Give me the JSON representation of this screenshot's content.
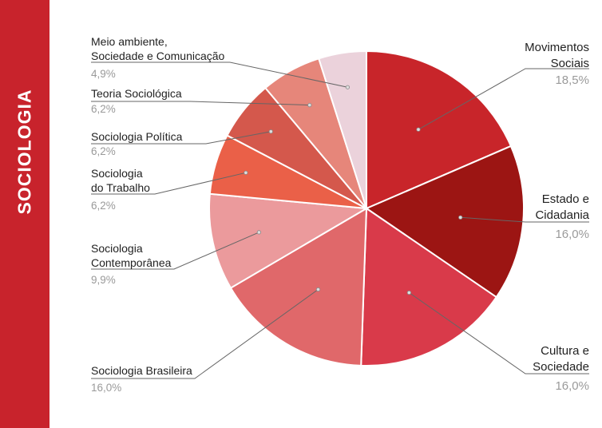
{
  "sidebar": {
    "title": "SOCIOLOGIA",
    "color": "#c8232c"
  },
  "chart_data": {
    "type": "pie",
    "slices": [
      {
        "label": [
          "Movimentos",
          "Sociais"
        ],
        "value_label": "18,5%",
        "value": 18.5,
        "color": "#c8252a"
      },
      {
        "label": [
          "Estado e",
          "Cidadania"
        ],
        "value_label": "16,0%",
        "value": 16.0,
        "color": "#9c1513"
      },
      {
        "label": [
          "Cultura e",
          "Sociedade"
        ],
        "value_label": "16,0%",
        "value": 16.0,
        "color": "#d93a4a"
      },
      {
        "label": [
          "Sociologia Brasileira"
        ],
        "value_label": "16,0%",
        "value": 16.0,
        "color": "#e0686a"
      },
      {
        "label": [
          "Sociologia",
          "Contemporânea"
        ],
        "value_label": "9,9%",
        "value": 9.9,
        "color": "#eb9a9c"
      },
      {
        "label": [
          "Sociologia",
          "do Trabalho"
        ],
        "value_label": "6,2%",
        "value": 6.2,
        "color": "#ea6048"
      },
      {
        "label": [
          "Sociologia Política"
        ],
        "value_label": "6,2%",
        "value": 6.2,
        "color": "#d4584c"
      },
      {
        "label": [
          "Teoria Sociológica"
        ],
        "value_label": "6,2%",
        "value": 6.2,
        "color": "#e6867a"
      },
      {
        "label": [
          "Meio ambiente,",
          "Sociedade e Comunicação"
        ],
        "value_label": "4,9%",
        "value": 4.9,
        "color": "#ebd2db"
      }
    ]
  }
}
